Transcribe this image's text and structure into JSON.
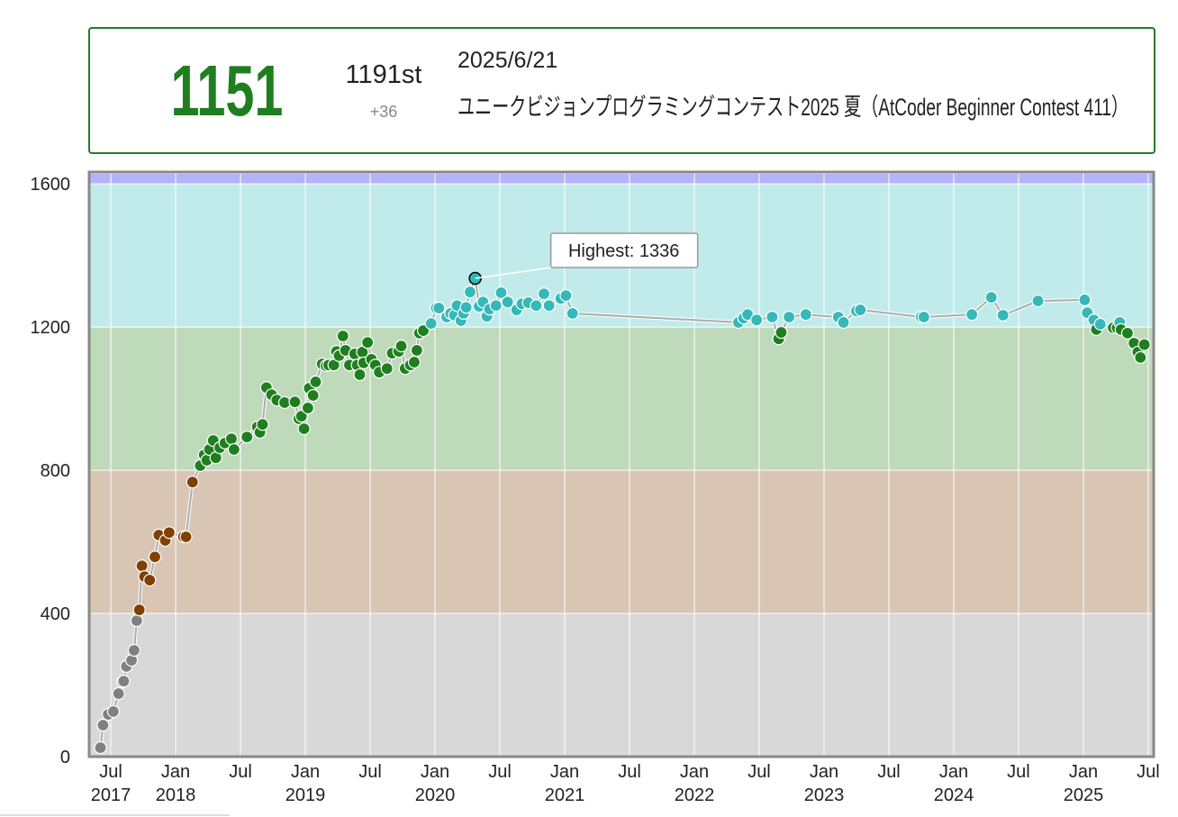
{
  "header": {
    "rating": "1151",
    "rank": "1191st",
    "diff": "+36",
    "date": "2025/6/21",
    "contest": "ユニークビジョンプログラミングコンテスト2025 夏（AtCoder Beginner Contest 411）"
  },
  "chart_data": {
    "type": "line",
    "x": [
      2017.42,
      2017.44,
      2017.48,
      2017.52,
      2017.56,
      2017.59,
      2017.6,
      2017.62,
      2017.66,
      2017.68,
      2017.7,
      2017.72,
      2017.74,
      2017.76,
      2017.8,
      2017.84,
      2017.87,
      2017.92,
      2017.95,
      2018.06,
      2018.08,
      2018.13,
      2018.19,
      2018.22,
      2018.24,
      2018.26,
      2018.29,
      2018.31,
      2018.34,
      2018.38,
      2018.43,
      2018.45,
      2018.55,
      2018.63,
      2018.65,
      2018.67,
      2018.7,
      2018.74,
      2018.78,
      2018.84,
      2018.92,
      2018.95,
      2018.97,
      2018.99,
      2019.02,
      2019.03,
      2019.06,
      2019.08,
      2019.13,
      2019.16,
      2019.18,
      2019.22,
      2019.24,
      2019.26,
      2019.29,
      2019.31,
      2019.34,
      2019.38,
      2019.4,
      2019.42,
      2019.44,
      2019.45,
      2019.48,
      2019.51,
      2019.54,
      2019.57,
      2019.63,
      2019.67,
      2019.72,
      2019.74,
      2019.77,
      2019.81,
      2019.84,
      2019.86,
      2019.88,
      2019.91,
      2019.97,
      2020.01,
      2020.03,
      2020.09,
      2020.12,
      2020.15,
      2020.17,
      2020.2,
      2020.22,
      2020.24,
      2020.27,
      2020.31,
      2020.34,
      2020.37,
      2020.4,
      2020.42,
      2020.47,
      2020.51,
      2020.56,
      2020.63,
      2020.67,
      2020.72,
      2020.78,
      2020.84,
      2020.88,
      2020.97,
      2021.01,
      2021.06,
      2022.34,
      2022.38,
      2022.41,
      2022.48,
      2022.6,
      2022.65,
      2022.67,
      2022.73,
      2022.86,
      2023.11,
      2023.15,
      2023.25,
      2023.28,
      2023.75,
      2023.77,
      2024.14,
      2024.29,
      2024.38,
      2024.65,
      2025.01,
      2025.03,
      2025.08,
      2025.1,
      2025.13,
      2025.23,
      2025.26,
      2025.28,
      2025.29,
      2025.34,
      2025.39,
      2025.42,
      2025.44,
      2025.47
    ],
    "values": [
      25,
      88,
      118,
      126,
      176,
      209,
      211,
      252,
      269,
      297,
      380,
      410,
      533,
      503,
      493,
      558,
      619,
      604,
      626,
      614,
      614,
      767,
      813,
      843,
      828,
      858,
      883,
      835,
      863,
      876,
      888,
      858,
      893,
      921,
      906,
      928,
      1031,
      1011,
      996,
      989,
      991,
      944,
      951,
      916,
      974,
      1029,
      1009,
      1047,
      1097,
      1092,
      1094,
      1094,
      1132,
      1120,
      1175,
      1135,
      1094,
      1125,
      1094,
      1067,
      1130,
      1100,
      1157,
      1110,
      1094,
      1074,
      1084,
      1127,
      1132,
      1147,
      1084,
      1094,
      1102,
      1135,
      1183,
      1190,
      1210,
      1253,
      1253,
      1228,
      1238,
      1233,
      1260,
      1218,
      1238,
      1255,
      1298,
      1336,
      1258,
      1270,
      1230,
      1250,
      1260,
      1296,
      1270,
      1248,
      1265,
      1268,
      1260,
      1293,
      1260,
      1280,
      1288,
      1238,
      1213,
      1225,
      1235,
      1220,
      1228,
      1167,
      1185,
      1228,
      1235,
      1228,
      1213,
      1245,
      1248,
      1228,
      1228,
      1235,
      1283,
      1233,
      1273,
      1276,
      1240,
      1220,
      1193,
      1208,
      1198,
      1198,
      1213,
      1193,
      1183,
      1155,
      1130,
      1115,
      1151
    ],
    "highlight": {
      "text": "Highest: 1336",
      "index": 87
    },
    "bands": [
      {
        "from": 0,
        "to": 400,
        "color": "#d8d8d8",
        "point": "#808080"
      },
      {
        "from": 400,
        "to": 800,
        "color": "#d8c5b3",
        "point": "#804000"
      },
      {
        "from": 800,
        "to": 1200,
        "color": "#bfdabb",
        "point": "#1f7f1f"
      },
      {
        "from": 1200,
        "to": 1600,
        "color": "#c1ebea",
        "point": "#34b8b8"
      },
      {
        "from": 1600,
        "color": "#b3b4f5",
        "point": "#0000ff"
      }
    ],
    "xlim": [
      2017.34,
      2025.535
    ],
    "ylim": [
      0,
      1628
    ],
    "yticks": [
      0,
      400,
      800,
      1200,
      1600
    ],
    "xticks": [
      {
        "value": 2017.5,
        "label": "Jul",
        "sub": "2017"
      },
      {
        "value": 2018,
        "label": "Jan",
        "sub": "2018"
      },
      {
        "value": 2018.5,
        "label": "Jul"
      },
      {
        "value": 2019,
        "label": "Jan",
        "sub": "2019"
      },
      {
        "value": 2019.5,
        "label": "Jul"
      },
      {
        "value": 2020,
        "label": "Jan",
        "sub": "2020"
      },
      {
        "value": 2020.5,
        "label": "Jul"
      },
      {
        "value": 2021,
        "label": "Jan",
        "sub": "2021"
      },
      {
        "value": 2021.5,
        "label": "Jul"
      },
      {
        "value": 2022,
        "label": "Jan",
        "sub": "2022"
      },
      {
        "value": 2022.5,
        "label": "Jul"
      },
      {
        "value": 2023,
        "label": "Jan",
        "sub": "2023"
      },
      {
        "value": 2023.5,
        "label": "Jul"
      },
      {
        "value": 2024,
        "label": "Jan",
        "sub": "2024"
      },
      {
        "value": 2024.5,
        "label": "Jul"
      },
      {
        "value": 2025,
        "label": "Jan",
        "sub": "2025"
      },
      {
        "value": 2025.5,
        "label": "Jul"
      }
    ]
  }
}
